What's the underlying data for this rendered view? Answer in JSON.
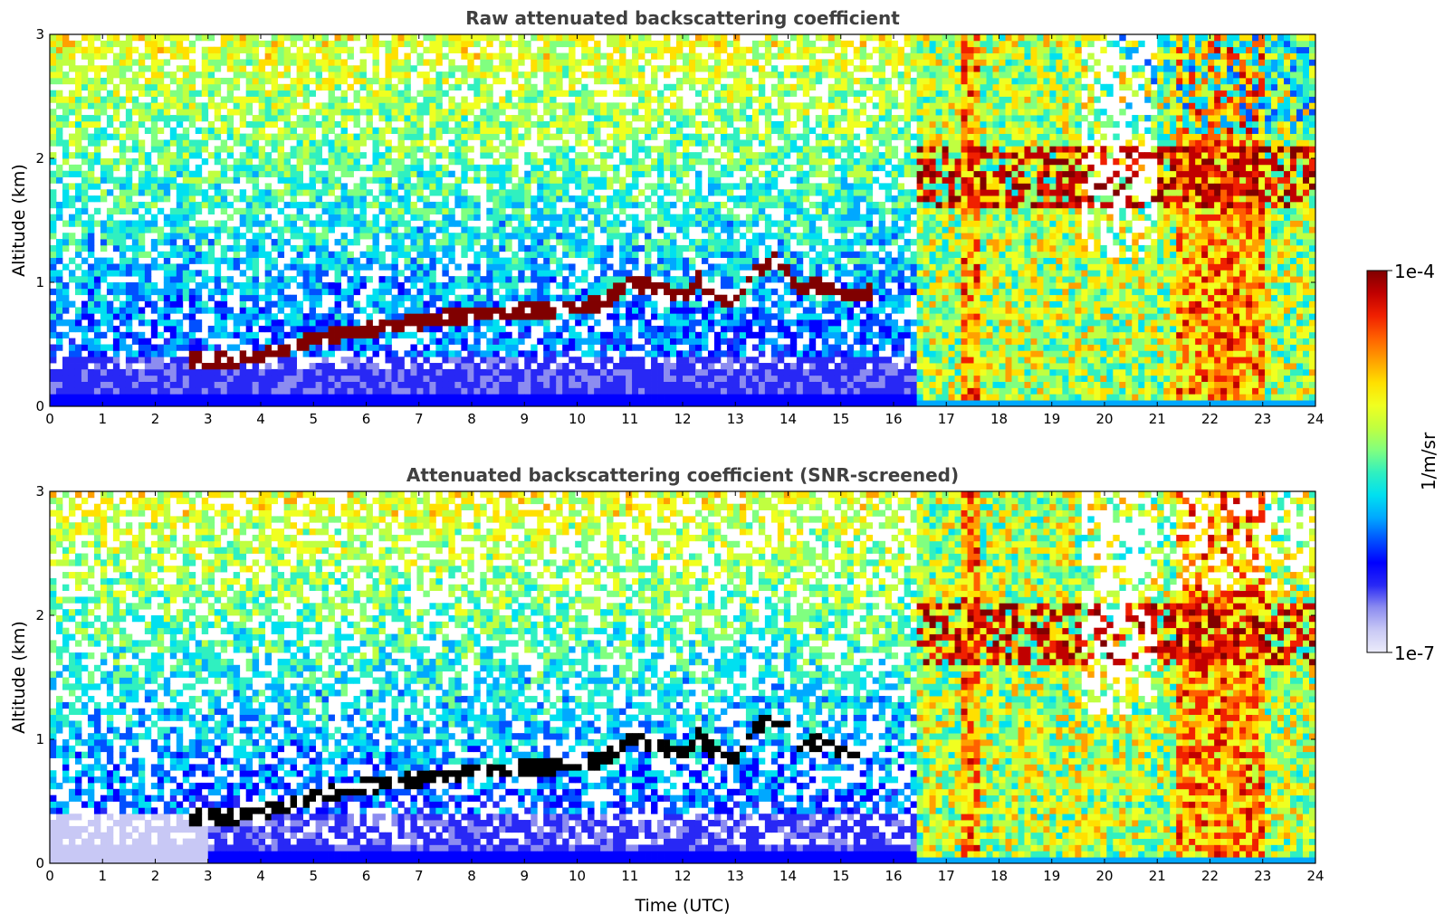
{
  "chart_data": [
    {
      "type": "heatmap",
      "title": "Raw attenuated backscattering coefficient",
      "xlabel": "",
      "ylabel": "Altitude (km)",
      "xlim": [
        0,
        24
      ],
      "ylim": [
        0,
        3
      ],
      "x_ticks": [
        "0",
        "1",
        "2",
        "3",
        "4",
        "5",
        "6",
        "7",
        "8",
        "9",
        "10",
        "11",
        "12",
        "13",
        "14",
        "15",
        "16",
        "17",
        "18",
        "19",
        "20",
        "21",
        "22",
        "23",
        "24"
      ],
      "y_ticks": [
        "0",
        "1",
        "2",
        "3"
      ],
      "screened": false,
      "features": {
        "cloud_layer": [
          {
            "t": 2.7,
            "h": 0.38
          },
          {
            "t": 3.0,
            "h": 0.38
          },
          {
            "t": 3.5,
            "h": 0.38
          },
          {
            "t": 4.0,
            "h": 0.4
          },
          {
            "t": 4.5,
            "h": 0.47
          },
          {
            "t": 5.0,
            "h": 0.55
          },
          {
            "t": 5.5,
            "h": 0.58
          },
          {
            "t": 6.0,
            "h": 0.62
          },
          {
            "t": 6.5,
            "h": 0.65
          },
          {
            "t": 7.0,
            "h": 0.68
          },
          {
            "t": 7.5,
            "h": 0.72
          },
          {
            "t": 8.0,
            "h": 0.74
          },
          {
            "t": 8.5,
            "h": 0.76
          },
          {
            "t": 9.0,
            "h": 0.77
          },
          {
            "t": 9.5,
            "h": 0.78
          },
          {
            "t": 10.0,
            "h": 0.8
          },
          {
            "t": 10.5,
            "h": 0.84
          },
          {
            "t": 11.0,
            "h": 1.0
          },
          {
            "t": 11.5,
            "h": 0.95
          },
          {
            "t": 12.0,
            "h": 0.88
          },
          {
            "t": 12.3,
            "h": 1.02
          },
          {
            "t": 12.6,
            "h": 0.9
          },
          {
            "t": 13.0,
            "h": 0.85
          },
          {
            "t": 13.4,
            "h": 1.1
          },
          {
            "t": 13.8,
            "h": 1.2
          },
          {
            "t": 14.2,
            "h": 0.95
          },
          {
            "t": 14.6,
            "h": 0.98
          },
          {
            "t": 15.0,
            "h": 0.9
          },
          {
            "t": 15.6,
            "h": 0.92
          }
        ],
        "clear_sky_end_time": 16.4,
        "strong_cloud_periods": [
          [
            17.3,
            17.6
          ],
          [
            21.3,
            23.0
          ]
        ]
      }
    },
    {
      "type": "heatmap",
      "title": "Attenuated backscattering coefficient (SNR-screened)",
      "xlabel": "Time (UTC)",
      "ylabel": "Altitude (km)",
      "xlim": [
        0,
        24
      ],
      "ylim": [
        0,
        3
      ],
      "x_ticks": [
        "0",
        "1",
        "2",
        "3",
        "4",
        "5",
        "6",
        "7",
        "8",
        "9",
        "10",
        "11",
        "12",
        "13",
        "14",
        "15",
        "16",
        "17",
        "18",
        "19",
        "20",
        "21",
        "22",
        "23",
        "24"
      ],
      "y_ticks": [
        "0",
        "1",
        "2",
        "3"
      ],
      "screened": true
    }
  ],
  "colorbar": {
    "label": "1/m/sr",
    "max_label": "1e-4",
    "min_label": "1e-7",
    "scale": "log",
    "colormap": [
      "#ececfa",
      "#c8c8f5",
      "#8c8cf0",
      "#2828f5",
      "#0000ff",
      "#0050ff",
      "#00a8ff",
      "#00e0f0",
      "#30f0c0",
      "#80ff80",
      "#c0ff40",
      "#f0ff20",
      "#ffe000",
      "#ffa000",
      "#ff6000",
      "#f02000",
      "#c00000",
      "#800000"
    ]
  }
}
